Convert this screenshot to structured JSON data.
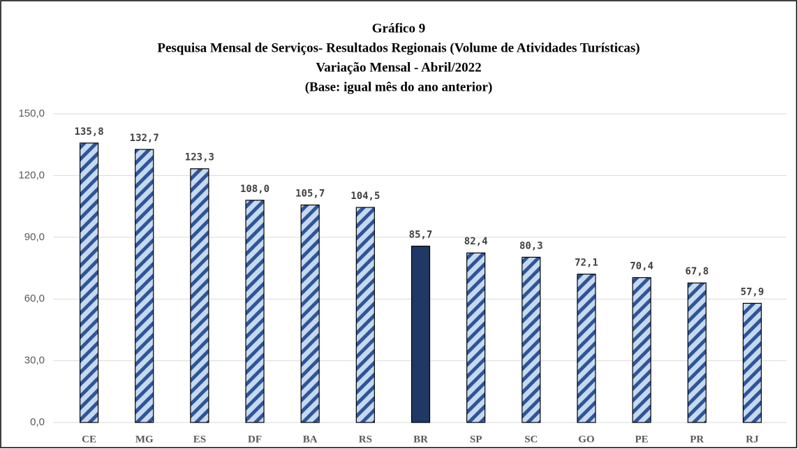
{
  "chart_data": {
    "type": "bar",
    "title": [
      "Gráfico 9",
      "Pesquisa Mensal de Serviços- Resultados Regionais (Volume de Atividades Turísticas)",
      "Variação Mensal - Abril/2022",
      "(Base: igual mês do ano anterior)"
    ],
    "categories": [
      "CE",
      "MG",
      "ES",
      "DF",
      "BA",
      "RS",
      "BR",
      "SP",
      "SC",
      "GO",
      "PE",
      "PR",
      "RJ"
    ],
    "values": [
      135.8,
      132.7,
      123.3,
      108.0,
      105.7,
      104.5,
      85.7,
      82.4,
      80.3,
      72.1,
      70.4,
      67.8,
      57.9
    ],
    "value_labels": [
      "135,8",
      "132,7",
      "123,3",
      "108,0",
      "105,7",
      "104,5",
      "85,7",
      "82,4",
      "80,3",
      "72,1",
      "70,4",
      "67,8",
      "57,9"
    ],
    "patterns": [
      "hatch",
      "hatch",
      "hatch",
      "hatch",
      "hatch",
      "hatch",
      "solid",
      "hatch",
      "hatch",
      "hatch",
      "hatch",
      "hatch",
      "hatch"
    ],
    "color": "#2f5597",
    "hatch_background": "#c5d9f1",
    "solid_color": "#1f3864",
    "ylim": [
      0,
      150
    ],
    "yticks": [
      {
        "value": 0,
        "label": "0,0"
      },
      {
        "value": 30,
        "label": "30,0"
      },
      {
        "value": 60,
        "label": "60,0"
      },
      {
        "value": 90,
        "label": "90,0"
      },
      {
        "value": 120,
        "label": "120,0"
      },
      {
        "value": 150,
        "label": "150,0"
      }
    ],
    "grid": true
  }
}
